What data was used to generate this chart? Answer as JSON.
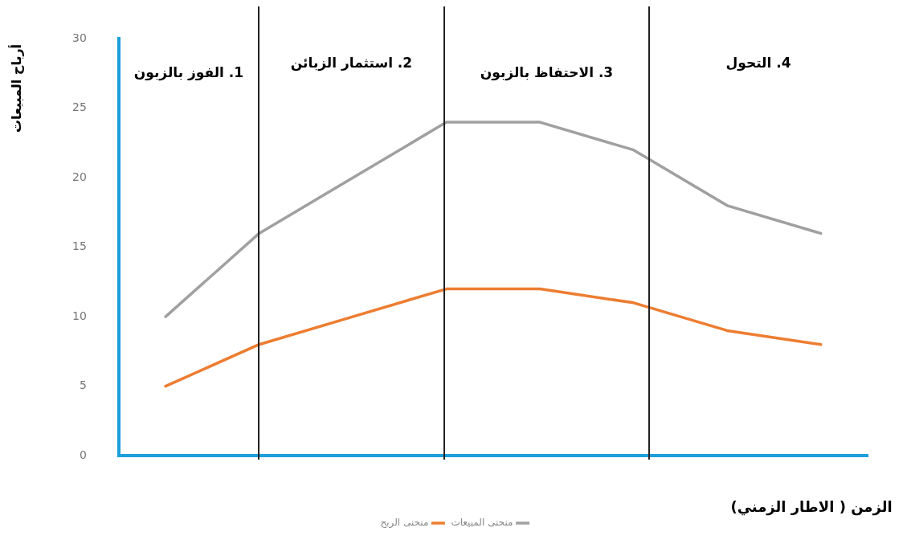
{
  "chart_data": {
    "type": "line",
    "xlabel": "الزمن ( الاطار الزمني)",
    "ylabel": "أرباح المبيعات",
    "categories": [
      null,
      null,
      null,
      null,
      null,
      null,
      null,
      null
    ],
    "ylim": [
      0,
      30
    ],
    "yticks": [
      0,
      5,
      10,
      15,
      20,
      25,
      30
    ],
    "tick_labels": "y",
    "grid": false,
    "legend": "bottom",
    "marker": "none",
    "line_style": "solid",
    "series": [
      {
        "name": "منحنى المبيعات",
        "color": "#a0a0a0",
        "values": [
          10,
          16,
          20,
          24,
          24,
          22,
          18,
          16
        ]
      },
      {
        "name": "منحنى الربح",
        "color": "#ed7d31",
        "values": [
          5,
          8,
          10,
          12,
          12,
          11,
          9,
          8
        ]
      }
    ],
    "annotations": [
      "1. الفوز بالزبون",
      "2. استثمار الزبائن",
      "3. الاحتفاظ بالزبون",
      "4. التحول"
    ]
  }
}
